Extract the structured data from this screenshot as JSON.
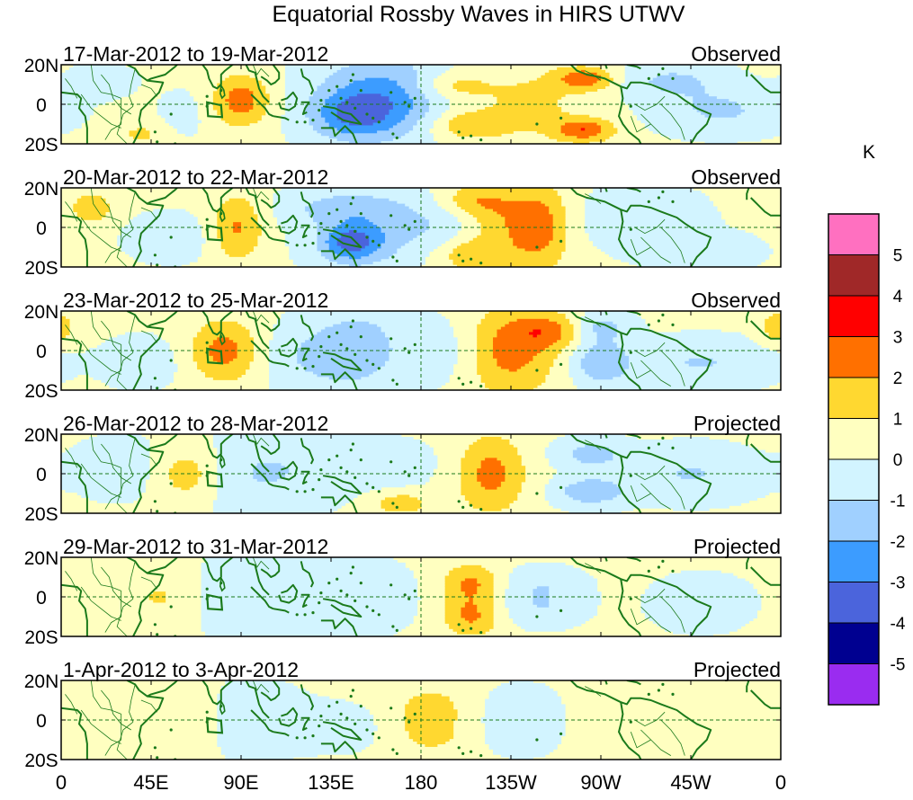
{
  "chart_data": {
    "type": "heatmap",
    "title": "Equatorial Rossby Waves in HIRS UTWV",
    "colorbar": {
      "unit_label": "K",
      "levels": [
        5,
        4,
        3,
        2,
        1,
        0,
        -1,
        -2,
        -3,
        -4,
        -5
      ],
      "colors": [
        "#ff70c0",
        "#a02828",
        "#ff0000",
        "#ff7000",
        "#ffd830",
        "#ffffc0",
        "#d2f4ff",
        "#a0d0ff",
        "#3c9cff",
        "#4b64dc",
        "#000090",
        "#9a2cf0"
      ]
    },
    "xaxis": {
      "tick_labels": [
        "0",
        "45E",
        "90E",
        "135E",
        "180",
        "135W",
        "90W",
        "45W",
        "0"
      ],
      "range_deg_east": [
        0,
        360
      ]
    },
    "yaxis": {
      "tick_labels": [
        "20N",
        "0",
        "20S"
      ],
      "range_deg": [
        -20,
        20
      ]
    },
    "panels": [
      {
        "date_range": "17-Mar-2012 to 19-Mar-2012",
        "status": "Observed",
        "blobs": [
          [
            90,
            2,
            10,
            9,
            2.4
          ],
          [
            195,
            9,
            14,
            6,
            1.8
          ],
          [
            200,
            -10,
            14,
            6,
            1.8
          ],
          [
            232,
            0,
            20,
            14,
            1.3
          ],
          [
            262,
            13,
            10,
            4,
            2.6
          ],
          [
            262,
            -13,
            10,
            4,
            2.6
          ],
          [
            158,
            3,
            22,
            15,
            -2.0
          ],
          [
            145,
            -6,
            14,
            8,
            -2.0
          ],
          [
            180,
            3,
            30,
            14,
            -1.0
          ],
          [
            305,
            12,
            18,
            6,
            -1.3
          ],
          [
            330,
            -3,
            22,
            8,
            -1.3
          ],
          [
            60,
            -5,
            8,
            8,
            -0.6
          ],
          [
            40,
            -15,
            10,
            5,
            1.0
          ],
          [
            20,
            12,
            10,
            5,
            -1.0
          ]
        ]
      },
      {
        "date_range": "20-Mar-2012 to 22-Mar-2012",
        "status": "Observed",
        "blobs": [
          [
            88,
            0,
            9,
            12,
            2.0
          ],
          [
            207,
            14,
            14,
            6,
            1.7
          ],
          [
            207,
            -14,
            14,
            6,
            1.7
          ],
          [
            222,
            2,
            14,
            10,
            1.4
          ],
          [
            240,
            0,
            10,
            16,
            2.0
          ],
          [
            150,
            -3,
            18,
            14,
            -1.5
          ],
          [
            145,
            -8,
            10,
            6,
            -2.5
          ],
          [
            135,
            10,
            20,
            6,
            -1.0
          ],
          [
            185,
            3,
            18,
            12,
            -1.0
          ],
          [
            290,
            5,
            20,
            10,
            -1.0
          ],
          [
            320,
            -12,
            18,
            6,
            -1.0
          ],
          [
            55,
            -5,
            15,
            8,
            -0.8
          ],
          [
            15,
            10,
            8,
            6,
            1.5
          ]
        ]
      },
      {
        "date_range": "23-Mar-2012 to 25-Mar-2012",
        "status": "Observed",
        "blobs": [
          [
            82,
            0,
            12,
            11,
            2.3
          ],
          [
            225,
            0,
            16,
            16,
            2.3
          ],
          [
            245,
            10,
            12,
            6,
            1.8
          ],
          [
            130,
            -3,
            20,
            12,
            -1.3
          ],
          [
            150,
            3,
            14,
            14,
            -1.3
          ],
          [
            190,
            0,
            14,
            12,
            -0.8
          ],
          [
            270,
            -6,
            10,
            8,
            -2.0
          ],
          [
            270,
            12,
            10,
            5,
            -1.5
          ],
          [
            320,
            -6,
            25,
            8,
            -1.2
          ],
          [
            40,
            -6,
            12,
            8,
            -1.0
          ],
          [
            358,
            12,
            6,
            6,
            1.5
          ]
        ]
      },
      {
        "date_range": "26-Mar-2012 to 28-Mar-2012",
        "status": "Projected",
        "blobs": [
          [
            63,
            0,
            12,
            10,
            1.6
          ],
          [
            215,
            0,
            12,
            14,
            2.2
          ],
          [
            170,
            -15,
            10,
            4,
            1.5
          ],
          [
            100,
            0,
            24,
            14,
            -1.2
          ],
          [
            155,
            5,
            22,
            8,
            -0.9
          ],
          [
            265,
            -9,
            12,
            5,
            -2.0
          ],
          [
            265,
            10,
            12,
            5,
            -1.6
          ],
          [
            315,
            0,
            22,
            9,
            -1.2
          ],
          [
            30,
            3,
            15,
            10,
            -0.8
          ]
        ]
      },
      {
        "date_range": "29-Mar-2012 to 31-Mar-2012",
        "status": "Projected",
        "blobs": [
          [
            50,
            0,
            14,
            10,
            1.0
          ],
          [
            205,
            7,
            10,
            7,
            2.0
          ],
          [
            205,
            -10,
            10,
            7,
            2.0
          ],
          [
            100,
            0,
            24,
            14,
            -1.0
          ],
          [
            145,
            0,
            20,
            12,
            -0.9
          ],
          [
            240,
            6,
            14,
            6,
            -1.0
          ],
          [
            240,
            -6,
            14,
            6,
            -1.0
          ],
          [
            320,
            -3,
            18,
            10,
            -0.6
          ]
        ]
      },
      {
        "date_range": "1-Apr-2012 to 3-Apr-2012",
        "status": "Projected",
        "blobs": [
          [
            185,
            7,
            12,
            7,
            1.3
          ],
          [
            185,
            -7,
            12,
            7,
            1.2
          ],
          [
            60,
            0,
            15,
            12,
            0.8
          ],
          [
            230,
            0,
            16,
            12,
            -0.6
          ],
          [
            90,
            0,
            24,
            14,
            -0.6
          ],
          [
            140,
            -4,
            14,
            8,
            -0.5
          ],
          [
            275,
            0,
            12,
            12,
            0.5
          ]
        ]
      }
    ]
  }
}
